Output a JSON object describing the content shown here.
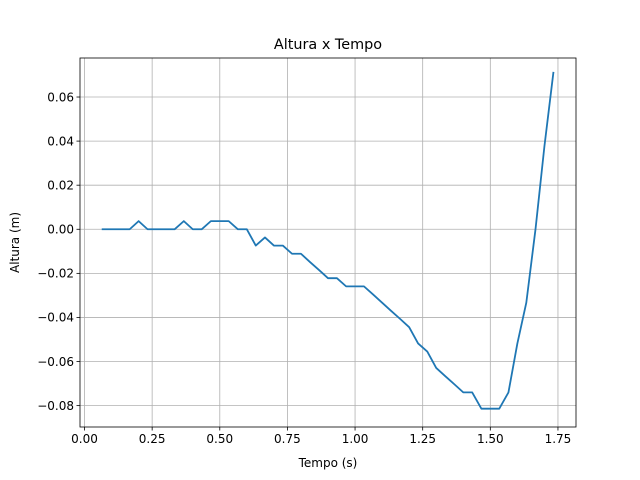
{
  "chart_data": {
    "type": "line",
    "title": "Altura x Tempo",
    "xlabel": "Tempo (s)",
    "ylabel": "Altura (m)",
    "xlim": [
      -0.0167,
      1.8167
    ],
    "ylim": [
      -0.0897,
      0.0777
    ],
    "grid": true,
    "xticks": [
      0.0,
      0.25,
      0.5,
      0.75,
      1.0,
      1.25,
      1.5,
      1.75
    ],
    "xtick_labels": [
      "0.00",
      "0.25",
      "0.50",
      "0.75",
      "1.00",
      "1.25",
      "1.50",
      "1.75"
    ],
    "yticks": [
      -0.08,
      -0.06,
      -0.04,
      -0.02,
      0.0,
      0.02,
      0.04,
      0.06
    ],
    "ytick_labels": [
      "−0.08",
      "−0.06",
      "−0.04",
      "−0.02",
      "0.00",
      "0.02",
      "0.04",
      "0.06"
    ],
    "series": [
      {
        "color": "#1f77b4",
        "x": [
          0.067,
          0.1,
          0.133,
          0.167,
          0.2,
          0.233,
          0.267,
          0.3,
          0.333,
          0.367,
          0.4,
          0.433,
          0.467,
          0.5,
          0.533,
          0.567,
          0.6,
          0.633,
          0.667,
          0.7,
          0.733,
          0.767,
          0.8,
          0.833,
          0.867,
          0.9,
          0.933,
          0.967,
          1.0,
          1.033,
          1.067,
          1.1,
          1.133,
          1.167,
          1.2,
          1.233,
          1.267,
          1.3,
          1.333,
          1.367,
          1.4,
          1.433,
          1.467,
          1.5,
          1.533,
          1.567,
          1.6,
          1.633,
          1.667,
          1.7,
          1.733
        ],
        "y": [
          0.0,
          0.0,
          0.0,
          0.0,
          0.0037,
          0.0,
          0.0,
          0.0,
          0.0,
          0.0037,
          0.0,
          0.0,
          0.0037,
          0.0037,
          0.0037,
          0.0,
          0.0,
          -0.0074,
          -0.0037,
          -0.0074,
          -0.0074,
          -0.0111,
          -0.0111,
          -0.0148,
          -0.0185,
          -0.0222,
          -0.0222,
          -0.0259,
          -0.0259,
          -0.0259,
          -0.0296,
          -0.0333,
          -0.037,
          -0.0407,
          -0.0444,
          -0.0518,
          -0.0555,
          -0.0629,
          -0.0666,
          -0.0703,
          -0.074,
          -0.074,
          -0.0814,
          -0.0814,
          -0.0814,
          -0.074,
          -0.0518,
          -0.0333,
          -0.0,
          0.0377,
          0.071
        ]
      }
    ]
  }
}
